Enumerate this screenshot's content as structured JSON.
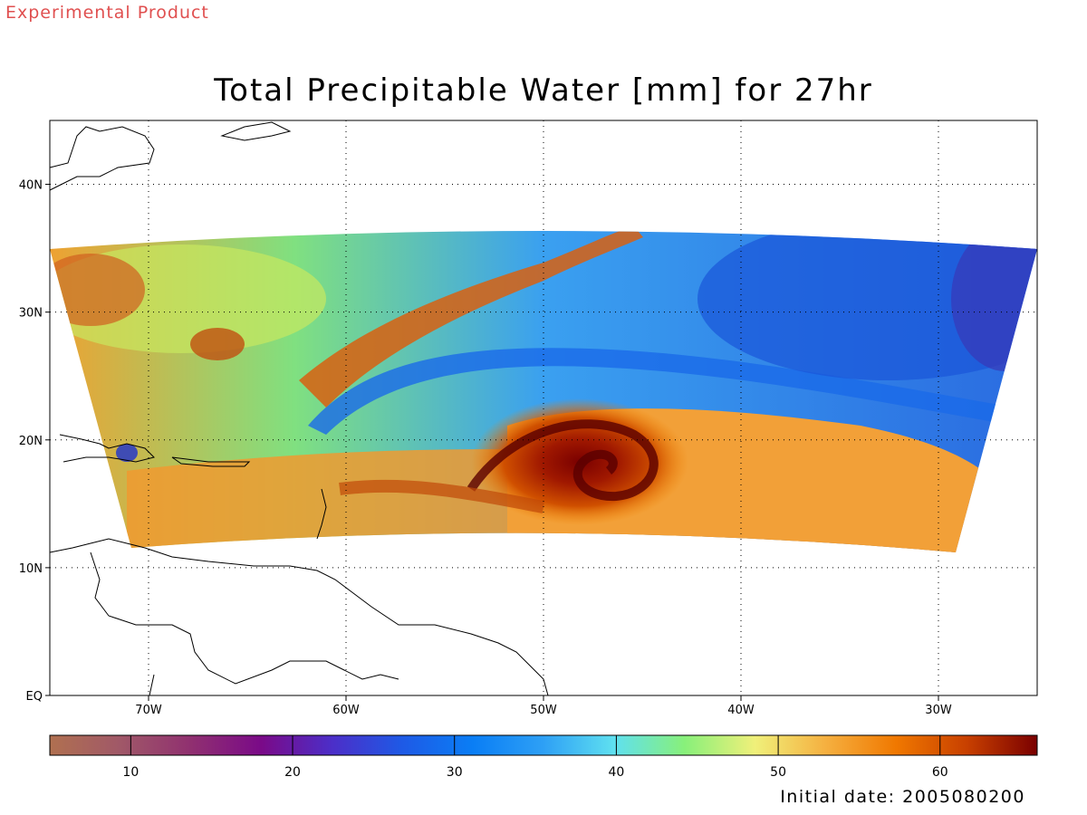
{
  "header": {
    "product_label": "Experimental Product",
    "title": "Total Precipitable Water [mm] for 27hr"
  },
  "footer": {
    "initial_date": "Initial date: 2005080200"
  },
  "map": {
    "lon_range": [
      -75,
      -25
    ],
    "lat_range": [
      0,
      45
    ],
    "lon_ticks": [
      {
        "value": -70,
        "label": "70W"
      },
      {
        "value": -60,
        "label": "60W"
      },
      {
        "value": -50,
        "label": "50W"
      },
      {
        "value": -40,
        "label": "40W"
      },
      {
        "value": -30,
        "label": "30W"
      }
    ],
    "lat_ticks": [
      {
        "value": 0,
        "label": "EQ"
      },
      {
        "value": 10,
        "label": "10N"
      },
      {
        "value": 20,
        "label": "20N"
      },
      {
        "value": 30,
        "label": "30N"
      },
      {
        "value": 40,
        "label": "40N"
      }
    ],
    "gridlines": "dotted",
    "features": {
      "hurricane_center": {
        "lon": -47.5,
        "lat": 18.5
      }
    }
  },
  "colorbar": {
    "range": [
      5,
      66
    ],
    "tick_labels": [
      {
        "value": 10,
        "label": "10"
      },
      {
        "value": 20,
        "label": "20"
      },
      {
        "value": 30,
        "label": "30"
      },
      {
        "value": 40,
        "label": "40"
      },
      {
        "value": 50,
        "label": "50"
      },
      {
        "value": 60,
        "label": "60"
      }
    ],
    "color_stops": [
      "#b07050",
      "#a05868",
      "#903070",
      "#7a0a88",
      "#4c2ec8",
      "#1e5ae6",
      "#0a7ef5",
      "#2ea0f5",
      "#5fe0f0",
      "#88f07a",
      "#f0f07a",
      "#f5b040",
      "#f07800",
      "#c84000",
      "#7a0000"
    ]
  }
}
